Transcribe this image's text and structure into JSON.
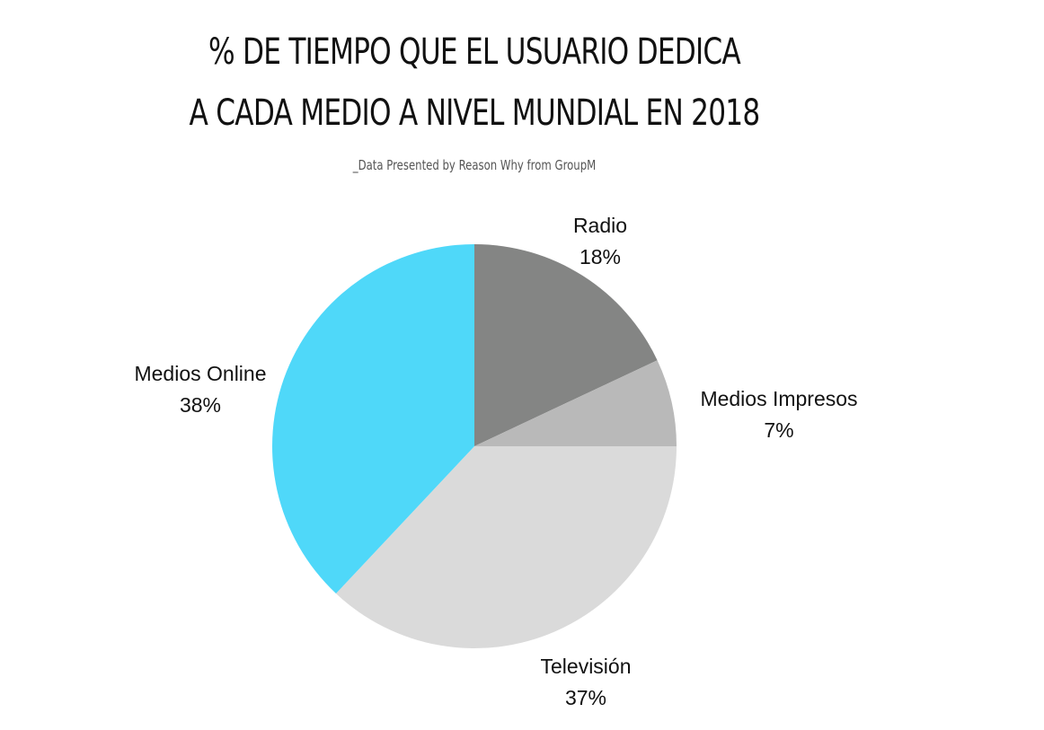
{
  "chart_data": {
    "type": "pie",
    "title_lines": [
      "% DE TIEMPO QUE EL USUARIO DEDICA",
      "A CADA MEDIO A NIVEL MUNDIAL EN 2018"
    ],
    "subtitle": "_Data Presented by Reason Why from GroupM",
    "slices": [
      {
        "label": "Radio",
        "value": 18,
        "value_label": "18%",
        "color": "#848584"
      },
      {
        "label": "Medios Impresos",
        "value": 7,
        "value_label": "7%",
        "color": "#b9b9b9"
      },
      {
        "label": "Televisión",
        "value": 37,
        "value_label": "37%",
        "color": "#dadada"
      },
      {
        "label": "Medios Online",
        "value": 38,
        "value_label": "38%",
        "color": "#4fd8f9"
      }
    ],
    "start": "12 o'clock",
    "direction": "clockwise"
  }
}
